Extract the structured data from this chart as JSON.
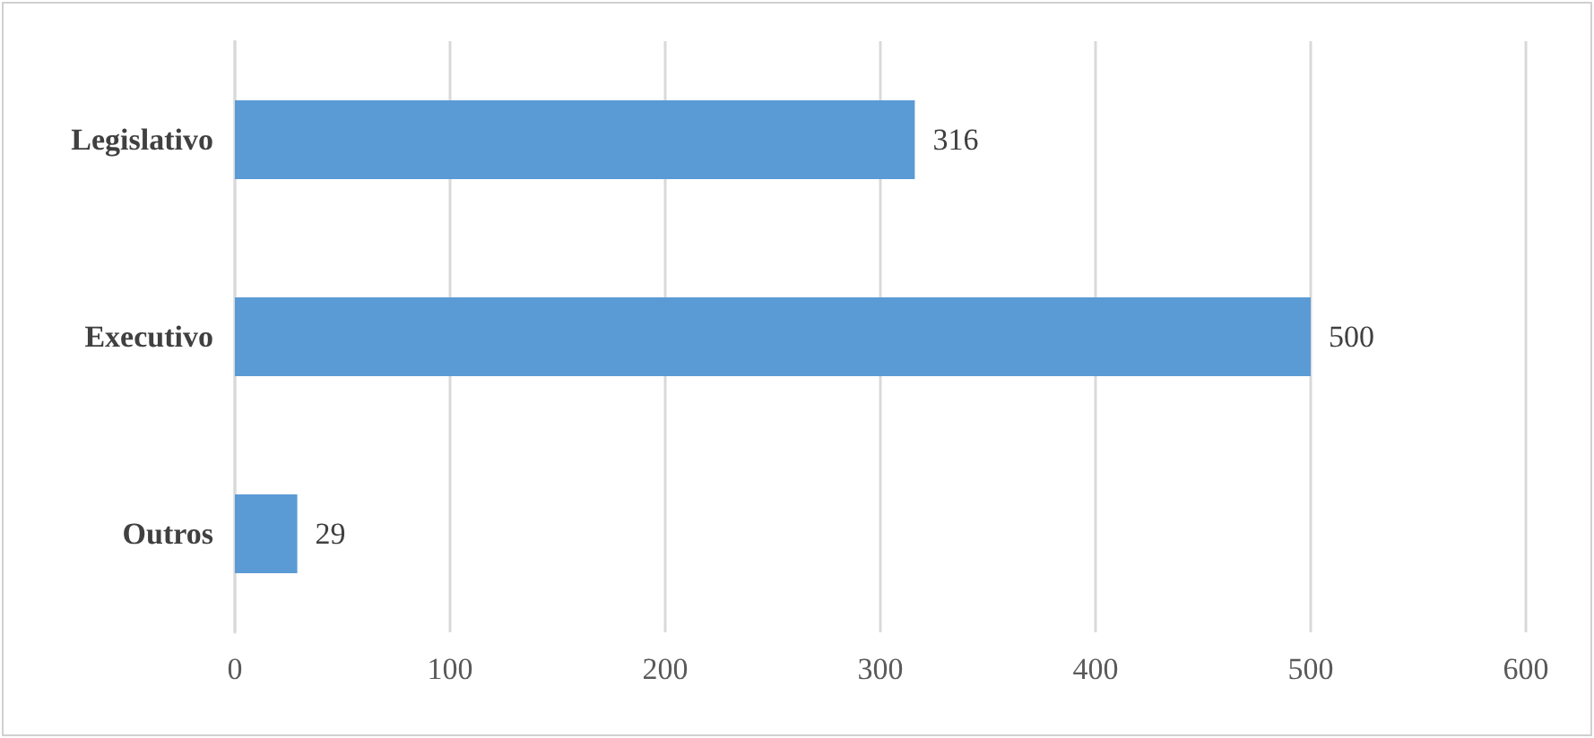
{
  "chart_data": {
    "type": "bar",
    "orientation": "horizontal",
    "categories": [
      "Legislativo",
      "Executivo",
      "Outros"
    ],
    "values": [
      316,
      500,
      29
    ],
    "color": "#5b9bd5",
    "xlim": [
      0,
      600
    ],
    "xticks": [
      0,
      100,
      200,
      300,
      400,
      500,
      600
    ],
    "grid": "x",
    "data_labels": true
  }
}
